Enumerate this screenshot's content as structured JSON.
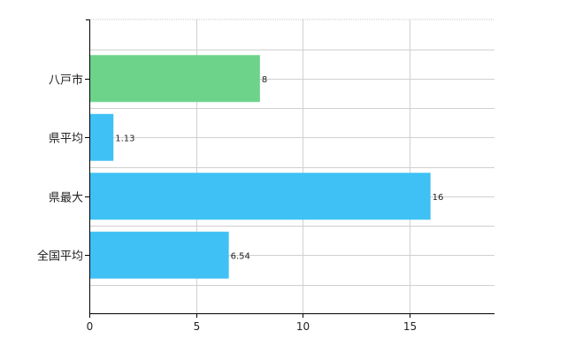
{
  "chart_data": {
    "type": "bar",
    "orientation": "horizontal",
    "categories": [
      "八戸市",
      "県平均",
      "県最大",
      "全国平均"
    ],
    "values": [
      8,
      1.13,
      16,
      6.54
    ],
    "value_labels": [
      "8",
      "1.13",
      "16",
      "6.54"
    ],
    "bar_colors": [
      "#6dd38a",
      "#3fc1f5",
      "#3fc1f5",
      "#3fc1f5"
    ],
    "xlim": [
      0,
      19
    ],
    "xticks": [
      0,
      5,
      10,
      15
    ],
    "xtick_labels": [
      "0",
      "5",
      "10",
      "15"
    ],
    "grid": true,
    "colors": {
      "grid": "#d0d0d0",
      "axis": "#000000"
    }
  }
}
